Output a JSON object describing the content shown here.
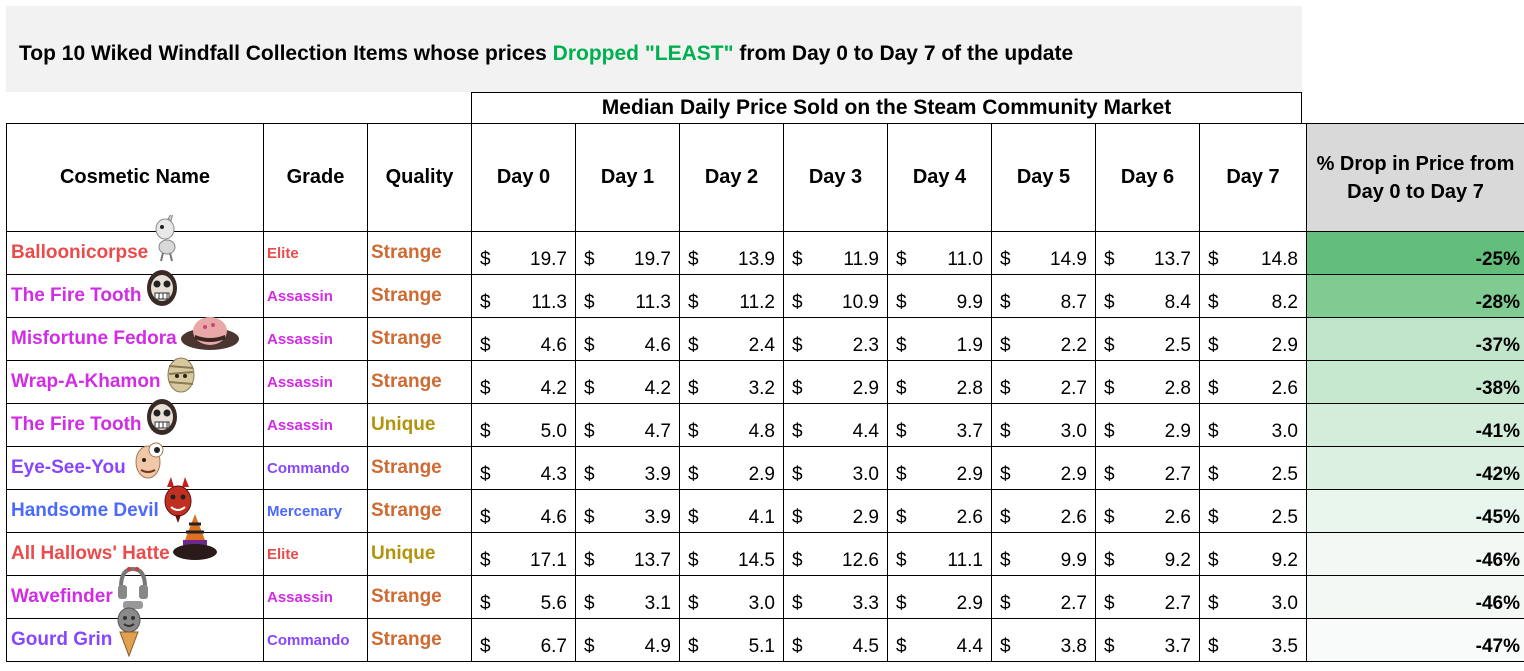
{
  "title": {
    "prefix": "Top 10 Wiked Windfall Collection Items whose prices ",
    "highlight": "Dropped \"LEAST\"",
    "suffix": " from Day 0 to Day 7 of the update"
  },
  "colors": {
    "highlight": "#00b050",
    "Elite": "#eb4b4b",
    "Assassin": "#d32ce6",
    "Commando": "#8847ff",
    "Mercenary": "#4b69ff",
    "Strange": "#cf6a32",
    "Unique": "#b2930c"
  },
  "median_header": "Median Daily Price Sold on the Steam Community Market",
  "headers": [
    "Cosmetic Name",
    "Grade",
    "Quality",
    "Day 0",
    "Day 1",
    "Day 2",
    "Day 3",
    "Day 4",
    "Day 5",
    "Day 6",
    "Day 7"
  ],
  "pct_header_line1": "% Drop in Price from",
  "pct_header_line2": "Day 0 to Day 7",
  "currency": "$",
  "rows": [
    {
      "name": "Balloonicorpse",
      "grade": "Elite",
      "quality": "Strange",
      "prices": [
        "19.7",
        "19.7",
        "13.9",
        "11.9",
        "11.0",
        "14.9",
        "13.7",
        "14.8"
      ],
      "pct": "-25%",
      "icon": "unicorn-balloon-icon"
    },
    {
      "name": "The Fire Tooth",
      "grade": "Assassin",
      "quality": "Strange",
      "prices": [
        "11.3",
        "11.3",
        "11.2",
        "10.9",
        "9.9",
        "8.7",
        "8.4",
        "8.2"
      ],
      "pct": "-28%",
      "icon": "skull-mask-icon"
    },
    {
      "name": "Misfortune Fedora",
      "grade": "Assassin",
      "quality": "Strange",
      "prices": [
        "4.6",
        "4.6",
        "2.4",
        "2.3",
        "1.9",
        "2.2",
        "2.5",
        "2.9"
      ],
      "pct": "-37%",
      "icon": "fedora-icon"
    },
    {
      "name": "Wrap-A-Khamon",
      "grade": "Assassin",
      "quality": "Strange",
      "prices": [
        "4.2",
        "4.2",
        "3.2",
        "2.9",
        "2.8",
        "2.7",
        "2.8",
        "2.6"
      ],
      "pct": "-38%",
      "icon": "mummy-wrap-icon"
    },
    {
      "name": "The Fire Tooth",
      "grade": "Assassin",
      "quality": "Unique",
      "prices": [
        "5.0",
        "4.7",
        "4.8",
        "4.4",
        "3.7",
        "3.0",
        "2.9",
        "3.0"
      ],
      "pct": "-41%",
      "icon": "skull-mask-icon"
    },
    {
      "name": "Eye-See-You",
      "grade": "Commando",
      "quality": "Strange",
      "prices": [
        "4.3",
        "3.9",
        "2.9",
        "3.0",
        "2.9",
        "2.9",
        "2.7",
        "2.5"
      ],
      "pct": "-42%",
      "icon": "eyeball-face-icon"
    },
    {
      "name": "Handsome Devil",
      "grade": "Mercenary",
      "quality": "Strange",
      "prices": [
        "4.6",
        "3.9",
        "4.1",
        "2.9",
        "2.6",
        "2.6",
        "2.6",
        "2.5"
      ],
      "pct": "-45%",
      "icon": "devil-mask-icon"
    },
    {
      "name": "All Hallows' Hatte",
      "grade": "Elite",
      "quality": "Unique",
      "prices": [
        "17.1",
        "13.7",
        "14.5",
        "12.6",
        "11.1",
        "9.9",
        "9.2",
        "9.2"
      ],
      "pct": "-46%",
      "icon": "witch-hat-icon"
    },
    {
      "name": "Wavefinder",
      "grade": "Assassin",
      "quality": "Strange",
      "prices": [
        "5.6",
        "3.1",
        "3.0",
        "3.3",
        "2.9",
        "2.7",
        "2.7",
        "3.0"
      ],
      "pct": "-46%",
      "icon": "headset-icon"
    },
    {
      "name": "Gourd Grin",
      "grade": "Commando",
      "quality": "Strange",
      "prices": [
        "6.7",
        "4.9",
        "5.1",
        "4.5",
        "4.4",
        "3.8",
        "3.7",
        "3.5"
      ],
      "pct": "-47%",
      "icon": "gourd-icon"
    }
  ]
}
